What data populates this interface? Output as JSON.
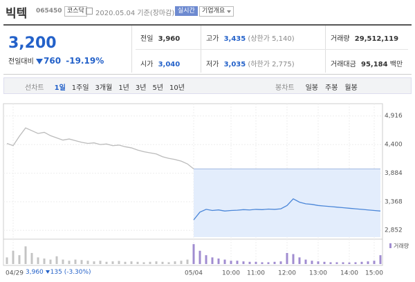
{
  "header": {
    "name": "빅텍",
    "code": "065450",
    "market": "코스닥",
    "date": "2020.05.04 기준(장마감)",
    "realtime": "실시간",
    "company_info": "기업개요"
  },
  "quote": {
    "price": "3,200",
    "change_label": "전일대비",
    "change": "760",
    "change_pct": "-19.19%",
    "rows": [
      [
        {
          "label": "전일",
          "value": "3,960"
        },
        {
          "label": "고가",
          "value": "3,435",
          "note": "(상한가 5,140)"
        },
        {
          "label": "거래량",
          "value": "29,512,119"
        }
      ],
      [
        {
          "label": "시가",
          "value": "3,040"
        },
        {
          "label": "저가",
          "value": "3,035",
          "note": "(하한가 2,775)"
        },
        {
          "label": "거래대금",
          "value": "95,184",
          "unit": "백만"
        }
      ]
    ]
  },
  "tabs": {
    "line_label": "선차트",
    "line_periods": [
      "1일",
      "1주일",
      "3개월",
      "1년",
      "3년",
      "5년",
      "10년"
    ],
    "candle_label": "봉차트",
    "candle_periods": [
      "일봉",
      "주봉",
      "월봉"
    ]
  },
  "chart_data": {
    "type": "line",
    "categories": [
      null,
      "04/29",
      null,
      null,
      null,
      null,
      null,
      null,
      null,
      null,
      null,
      null,
      null,
      null,
      null,
      null,
      null,
      null,
      null,
      null,
      null,
      null,
      null,
      null,
      null,
      null,
      null,
      null,
      null,
      null,
      "05/04",
      null,
      null,
      null,
      null,
      null,
      "10:00",
      null,
      null,
      null,
      "11:00",
      null,
      null,
      null,
      null,
      "12:00",
      null,
      null,
      null,
      null,
      "13:00",
      null,
      null,
      null,
      null,
      "14:00",
      null,
      null,
      null,
      "15:00",
      null
    ],
    "series": [
      {
        "color": "#bbbbbb",
        "values": [
          4420,
          4380,
          4550,
          4700,
          4650,
          4600,
          4620,
          4560,
          4520,
          4480,
          4500,
          4470,
          4440,
          4420,
          4430,
          4400,
          4410,
          4380,
          4390,
          4360,
          4340,
          4300,
          4270,
          4250,
          4230,
          4180,
          4150,
          4130,
          4100,
          4050,
          3960,
          null,
          null,
          null,
          null,
          null,
          null,
          null,
          null,
          null,
          null,
          null,
          null,
          null,
          null,
          null,
          null,
          null,
          null,
          null,
          null,
          null,
          null,
          null,
          null,
          null,
          null,
          null,
          null,
          null,
          null
        ]
      },
      {
        "color": "#4a86d8",
        "values": [
          null,
          null,
          null,
          null,
          null,
          null,
          null,
          null,
          null,
          null,
          null,
          null,
          null,
          null,
          null,
          null,
          null,
          null,
          null,
          null,
          null,
          null,
          null,
          null,
          null,
          null,
          null,
          null,
          null,
          null,
          3040,
          3180,
          3230,
          3210,
          3220,
          3200,
          3210,
          3215,
          3225,
          3220,
          3230,
          3225,
          3235,
          3230,
          3240,
          3300,
          3420,
          3360,
          3330,
          3320,
          3300,
          3290,
          3280,
          3270,
          3260,
          3250,
          3240,
          3230,
          3220,
          3210,
          3200
        ]
      }
    ],
    "baseline": 3960,
    "ylim": [
      2730,
      5075
    ],
    "yticks": [
      {
        "value": 2852,
        "label": "2,852"
      },
      {
        "value": 3368,
        "label": "3,368"
      },
      {
        "value": 3884,
        "label": "3,884"
      },
      {
        "value": 4400,
        "label": "4,400"
      },
      {
        "value": 4916,
        "label": "4,916"
      }
    ],
    "volume": {
      "name": "거래량",
      "color": "#a08cd0",
      "prev_color": "#c4c4c4",
      "ylim": [
        0,
        100
      ],
      "values": [
        30,
        60,
        40,
        80,
        50,
        30,
        25,
        20,
        35,
        20,
        15,
        20,
        18,
        15,
        12,
        15,
        10,
        12,
        14,
        10,
        12,
        10,
        8,
        10,
        12,
        10,
        8,
        12,
        15,
        20,
        90,
        60,
        40,
        30,
        25,
        20,
        15,
        15,
        12,
        10,
        10,
        8,
        8,
        10,
        12,
        50,
        45,
        30,
        20,
        15,
        12,
        10,
        8,
        8,
        8,
        7,
        8,
        10,
        12,
        15,
        40
      ]
    }
  },
  "hover": {
    "price": "3,960",
    "change": "135",
    "change_pct": "(-3.30%)"
  }
}
